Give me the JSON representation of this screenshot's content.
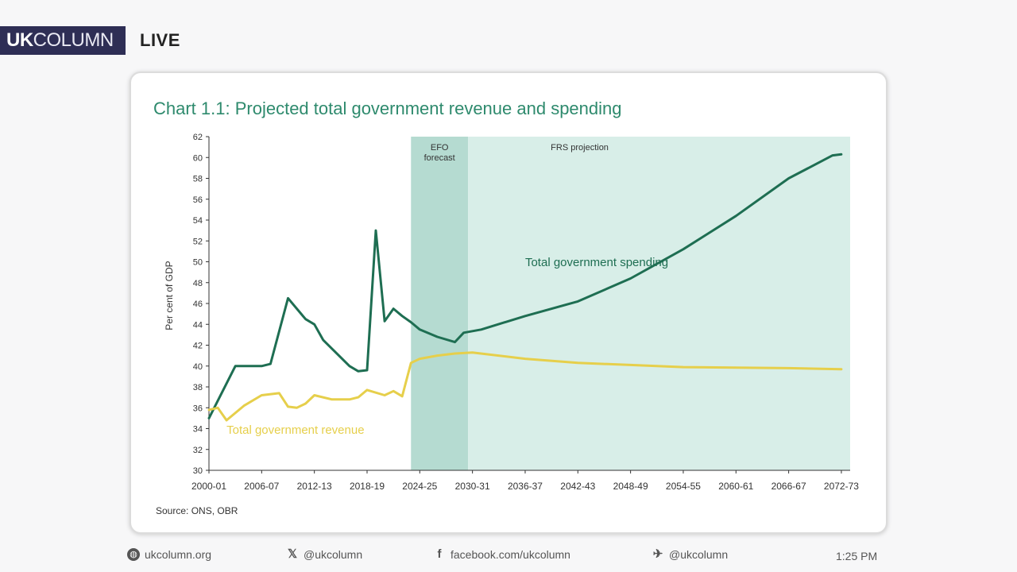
{
  "brand": {
    "logo_bold": "UK",
    "logo_light": "COLUMN",
    "live": "LIVE"
  },
  "chart_data": {
    "type": "line",
    "title": "Chart 1.1: Projected total government revenue and spending",
    "ylabel": "Per cent of GDP",
    "source": "Source: ONS, OBR",
    "ylim": [
      30,
      62
    ],
    "yticks": [
      30,
      32,
      34,
      36,
      38,
      40,
      42,
      44,
      46,
      48,
      50,
      52,
      54,
      56,
      58,
      60,
      62
    ],
    "ytick_labels": [
      "30",
      "32",
      "34",
      "36",
      "38",
      "40",
      "42",
      "44",
      "46",
      "48",
      "50",
      "52",
      "54",
      "56",
      "58",
      "60",
      "62"
    ],
    "xlim": [
      2000,
      2073
    ],
    "xticks": [
      2000,
      2006,
      2012,
      2018,
      2024,
      2030,
      2036,
      2042,
      2048,
      2054,
      2060,
      2066,
      2072
    ],
    "xtick_labels": [
      "2000-01",
      "2006-07",
      "2012-13",
      "2018-19",
      "2024-25",
      "2030-31",
      "2036-37",
      "2042-43",
      "2048-49",
      "2054-55",
      "2060-61",
      "2066-67",
      "2072-73"
    ],
    "shaded_regions": [
      {
        "label_lines": [
          "EFO",
          "forecast"
        ],
        "x0": 2023,
        "x1": 2029.5,
        "color": "#b5dbd1"
      },
      {
        "label_lines": [
          "FRS projection"
        ],
        "x0": 2029.5,
        "x1": 2073,
        "color": "#d8eee8"
      }
    ],
    "series": [
      {
        "name": "Total government spending",
        "color": "#1e6e52",
        "points": [
          [
            2000,
            35
          ],
          [
            2003,
            40
          ],
          [
            2006,
            40
          ],
          [
            2007,
            40.2
          ],
          [
            2009,
            46.5
          ],
          [
            2011,
            44.5
          ],
          [
            2012,
            44
          ],
          [
            2013,
            42.5
          ],
          [
            2016,
            40
          ],
          [
            2017,
            39.5
          ],
          [
            2018,
            39.6
          ],
          [
            2019,
            53
          ],
          [
            2020,
            44.3
          ],
          [
            2021,
            45.5
          ],
          [
            2022,
            44.8
          ],
          [
            2023,
            44.2
          ],
          [
            2024,
            43.5
          ],
          [
            2026,
            42.8
          ],
          [
            2028,
            42.3
          ],
          [
            2029,
            43.2
          ],
          [
            2031,
            43.5
          ],
          [
            2036,
            44.8
          ],
          [
            2042,
            46.2
          ],
          [
            2048,
            48.4
          ],
          [
            2054,
            51.2
          ],
          [
            2060,
            54.4
          ],
          [
            2066,
            58
          ],
          [
            2071,
            60.2
          ],
          [
            2072,
            60.3
          ]
        ]
      },
      {
        "name": "Total government revenue",
        "color": "#e6cf4b",
        "points": [
          [
            2000,
            35.8
          ],
          [
            2001,
            36
          ],
          [
            2002,
            34.8
          ],
          [
            2004,
            36.2
          ],
          [
            2006,
            37.2
          ],
          [
            2008,
            37.4
          ],
          [
            2009,
            36.1
          ],
          [
            2010,
            36
          ],
          [
            2011,
            36.4
          ],
          [
            2012,
            37.2
          ],
          [
            2014,
            36.8
          ],
          [
            2016,
            36.8
          ],
          [
            2017,
            37
          ],
          [
            2018,
            37.7
          ],
          [
            2020,
            37.2
          ],
          [
            2021,
            37.6
          ],
          [
            2022,
            37.1
          ],
          [
            2023,
            40.3
          ],
          [
            2024,
            40.7
          ],
          [
            2026,
            41
          ],
          [
            2028,
            41.2
          ],
          [
            2030,
            41.3
          ],
          [
            2036,
            40.7
          ],
          [
            2042,
            40.3
          ],
          [
            2048,
            40.1
          ],
          [
            2054,
            39.9
          ],
          [
            2060,
            39.85
          ],
          [
            2066,
            39.8
          ],
          [
            2072,
            39.7
          ]
        ]
      }
    ],
    "annotations": [
      {
        "text": "Total government spending",
        "series": "Total government spending",
        "x": 2036,
        "y": 49.6
      },
      {
        "text": "Total government revenue",
        "series": "Total government revenue",
        "x": 2002,
        "y": 33.5
      }
    ],
    "grid": false,
    "legend": "none"
  },
  "footer": {
    "website": "ukcolumn.org",
    "x_handle": "@ukcolumn",
    "facebook": "facebook.com/ukcolumn",
    "telegram": "@ukcolumn",
    "time": "1:25 PM"
  },
  "colors": {
    "brand": "#2e2e55",
    "title": "#2e8a6d"
  }
}
